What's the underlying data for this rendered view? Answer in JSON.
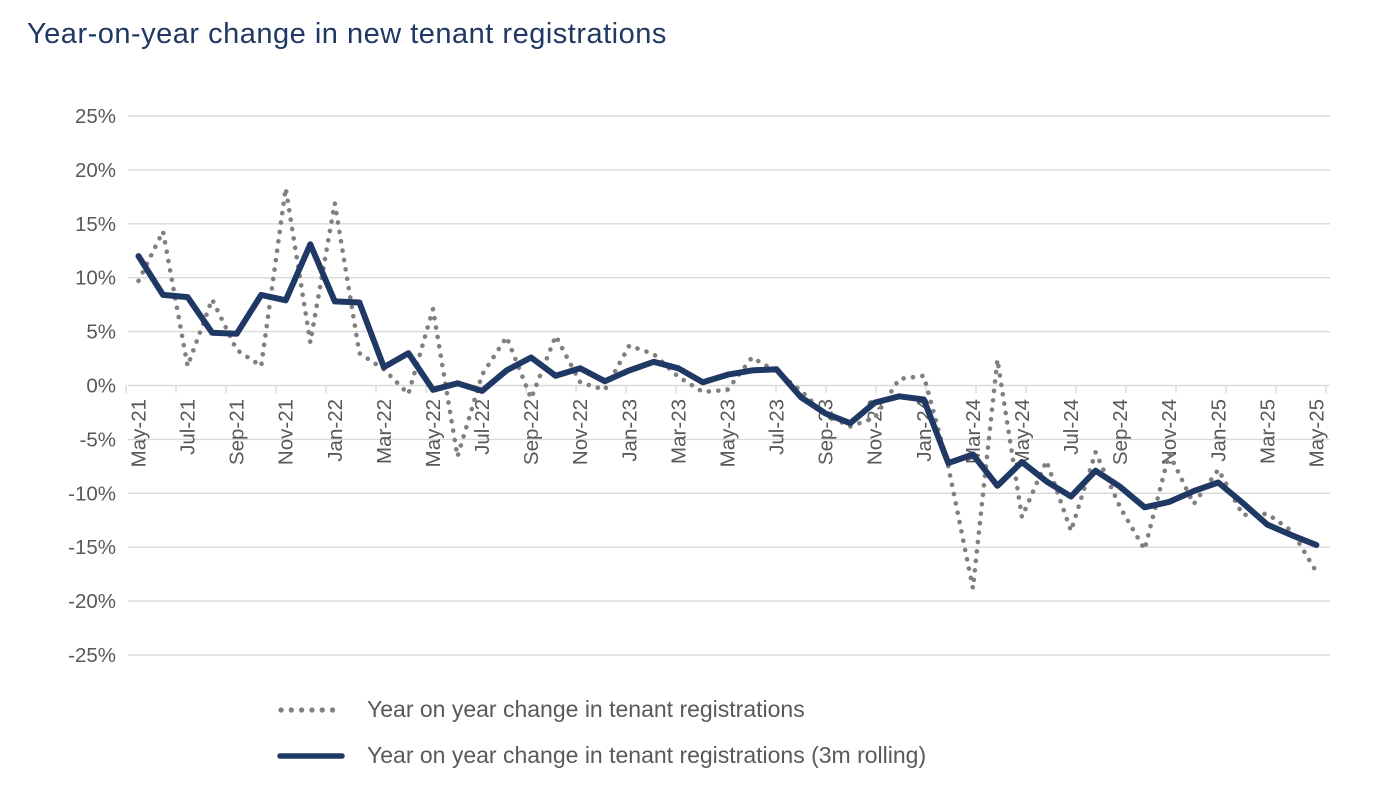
{
  "title": "Year-on-year change in new tenant registrations",
  "colors": {
    "navy": "#1f3864",
    "dot_gray": "#808080",
    "label_gray": "#595959",
    "gridline": "#d9d9d9",
    "background": "#ffffff"
  },
  "chart_data": {
    "type": "line",
    "title": "Year-on-year change in new tenant registrations",
    "categories": [
      "May-21",
      "Jun-21",
      "Jul-21",
      "Aug-21",
      "Sep-21",
      "Oct-21",
      "Nov-21",
      "Dec-21",
      "Jan-22",
      "Feb-22",
      "Mar-22",
      "Apr-22",
      "May-22",
      "Jun-22",
      "Jul-22",
      "Aug-22",
      "Sep-22",
      "Oct-22",
      "Nov-22",
      "Dec-22",
      "Jan-23",
      "Feb-23",
      "Mar-23",
      "Apr-23",
      "May-23",
      "Jun-23",
      "Jul-23",
      "Aug-23",
      "Sep-23",
      "Oct-23",
      "Nov-23",
      "Dec-23",
      "Jan-24",
      "Feb-24",
      "Mar-24",
      "Apr-24",
      "May-24",
      "Jun-24",
      "Jul-24",
      "Aug-24",
      "Sep-24",
      "Oct-24",
      "Nov-24",
      "Dec-24",
      "Jan-25",
      "Feb-25",
      "Mar-25",
      "Apr-25",
      "May-25"
    ],
    "x_tick_labels": [
      "May-21",
      "Jul-21",
      "Sep-21",
      "Nov-21",
      "Jan-22",
      "Mar-22",
      "May-22",
      "Jul-22",
      "Sep-22",
      "Nov-22",
      "Jan-23",
      "Mar-23",
      "May-23",
      "Jul-23",
      "Sep-23",
      "Nov-23",
      "Jan-24",
      "Mar-24",
      "May-24",
      "Jul-24",
      "Sep-24",
      "Nov-24",
      "Jan-25",
      "Mar-25",
      "May-25"
    ],
    "y_tick_labels": [
      "25%",
      "20%",
      "15%",
      "10%",
      "5%",
      "0%",
      "-5%",
      "-10%",
      "-15%",
      "-20%",
      "-25%"
    ],
    "ylim": [
      -25,
      25
    ],
    "ytick_step": 5,
    "grid": true,
    "legend_position": "bottom",
    "series": [
      {
        "name": "Year on year change in tenant registrations",
        "style": "dotted",
        "color": "#808080",
        "values": [
          9.7,
          14.3,
          1.8,
          8.0,
          3.3,
          1.8,
          18.3,
          4.0,
          16.9,
          3.0,
          1.5,
          -0.8,
          7.1,
          -6.6,
          1.0,
          4.5,
          -1.2,
          4.6,
          0.3,
          -0.4,
          3.7,
          2.9,
          0.8,
          -0.6,
          -0.4,
          2.6,
          1.3,
          -0.5,
          -2.7,
          -3.8,
          -3.0,
          0.6,
          0.9,
          -7.5,
          -18.8,
          2.4,
          -12.2,
          -7.0,
          -13.5,
          -6.2,
          -11.3,
          -15.2,
          -6.3,
          -11.0,
          -7.8,
          -12.0,
          -11.9,
          -13.5,
          -17.3
        ]
      },
      {
        "name": "Year on year change in tenant registrations (3m rolling)",
        "style": "solid",
        "color": "#1f3864",
        "values": [
          12.0,
          8.4,
          8.2,
          4.9,
          4.8,
          8.4,
          7.9,
          13.1,
          7.8,
          7.7,
          1.7,
          3.0,
          -0.4,
          0.2,
          -0.5,
          1.4,
          2.6,
          0.9,
          1.6,
          0.4,
          1.4,
          2.2,
          1.6,
          0.3,
          1.0,
          1.4,
          1.5,
          -1.1,
          -2.6,
          -3.5,
          -1.6,
          -1.0,
          -1.3,
          -7.2,
          -6.4,
          -9.3,
          -7.1,
          -8.9,
          -10.3,
          -7.9,
          -9.4,
          -11.3,
          -10.8,
          -9.8,
          -9.0,
          -10.9,
          -12.9,
          -13.9,
          -14.8
        ]
      }
    ]
  }
}
